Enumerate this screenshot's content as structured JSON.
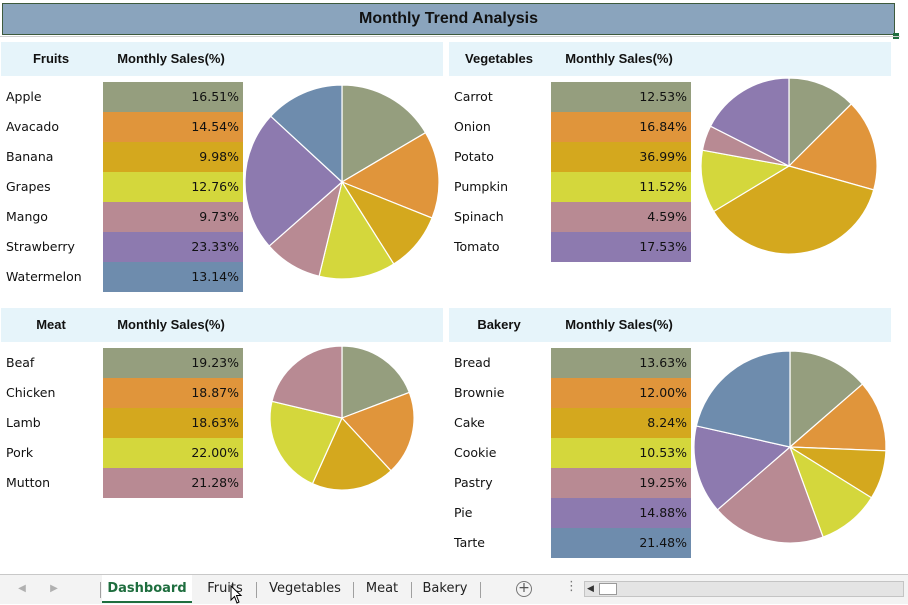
{
  "title": "Monthly Trend Analysis",
  "colors": {
    "slices": [
      "#959e7e",
      "#e0953b",
      "#d4a81e",
      "#d4d73c",
      "#b88a93",
      "#8d7aaf",
      "#6e8cad"
    ],
    "title_bg": "#8aa4bd",
    "header_bg": "#e6f4fa",
    "active_tab": "#1f6e3f"
  },
  "panels": [
    {
      "id": "fruits",
      "category": "Fruits",
      "metric": "Monthly Sales(%)",
      "items": [
        {
          "name": "Apple",
          "pct": "16.51%",
          "value": 16.51
        },
        {
          "name": "Avacado",
          "pct": "14.54%",
          "value": 14.54
        },
        {
          "name": "Banana",
          "pct": "9.98%",
          "value": 9.98
        },
        {
          "name": "Grapes",
          "pct": "12.76%",
          "value": 12.76
        },
        {
          "name": "Mango",
          "pct": "9.73%",
          "value": 9.73
        },
        {
          "name": "Strawberry",
          "pct": "23.33%",
          "value": 23.33
        },
        {
          "name": "Watermelon",
          "pct": "13.14%",
          "value": 13.14
        }
      ]
    },
    {
      "id": "vegetables",
      "category": "Vegetables",
      "metric": "Monthly Sales(%)",
      "items": [
        {
          "name": "Carrot",
          "pct": "12.53%",
          "value": 12.53
        },
        {
          "name": "Onion",
          "pct": "16.84%",
          "value": 16.84
        },
        {
          "name": "Potato",
          "pct": "36.99%",
          "value": 36.99
        },
        {
          "name": "Pumpkin",
          "pct": "11.52%",
          "value": 11.52
        },
        {
          "name": "Spinach",
          "pct": "4.59%",
          "value": 4.59
        },
        {
          "name": "Tomato",
          "pct": "17.53%",
          "value": 17.53
        }
      ]
    },
    {
      "id": "meat",
      "category": "Meat",
      "metric": "Monthly Sales(%)",
      "items": [
        {
          "name": "Beaf",
          "pct": "19.23%",
          "value": 19.23
        },
        {
          "name": "Chicken",
          "pct": "18.87%",
          "value": 18.87
        },
        {
          "name": "Lamb",
          "pct": "18.63%",
          "value": 18.63
        },
        {
          "name": "Pork",
          "pct": "22.00%",
          "value": 22.0
        },
        {
          "name": "Mutton",
          "pct": "21.28%",
          "value": 21.28
        }
      ]
    },
    {
      "id": "bakery",
      "category": "Bakery",
      "metric": "Monthly Sales(%)",
      "items": [
        {
          "name": "Bread",
          "pct": "13.63%",
          "value": 13.63
        },
        {
          "name": "Brownie",
          "pct": "12.00%",
          "value": 12.0
        },
        {
          "name": "Cake",
          "pct": "8.24%",
          "value": 8.24
        },
        {
          "name": "Cookie",
          "pct": "10.53%",
          "value": 10.53
        },
        {
          "name": "Pastry",
          "pct": "19.25%",
          "value": 19.25
        },
        {
          "name": "Pie",
          "pct": "14.88%",
          "value": 14.88
        },
        {
          "name": "Tarte",
          "pct": "21.48%",
          "value": 21.48
        }
      ]
    }
  ],
  "chart_data": [
    {
      "type": "pie",
      "categories": [
        "Apple",
        "Avacado",
        "Banana",
        "Grapes",
        "Mango",
        "Strawberry",
        "Watermelon"
      ],
      "values": [
        16.51,
        14.54,
        9.98,
        12.76,
        9.73,
        23.33,
        13.14
      ]
    },
    {
      "type": "pie",
      "categories": [
        "Carrot",
        "Onion",
        "Potato",
        "Pumpkin",
        "Spinach",
        "Tomato"
      ],
      "values": [
        12.53,
        16.84,
        36.99,
        11.52,
        4.59,
        17.53
      ]
    },
    {
      "type": "pie",
      "categories": [
        "Beaf",
        "Chicken",
        "Lamb",
        "Pork",
        "Mutton"
      ],
      "values": [
        19.23,
        18.87,
        18.63,
        22.0,
        21.28
      ]
    },
    {
      "type": "pie",
      "categories": [
        "Bread",
        "Brownie",
        "Cake",
        "Cookie",
        "Pastry",
        "Pie",
        "Tarte"
      ],
      "values": [
        13.63,
        12.0,
        8.24,
        10.53,
        19.25,
        14.88,
        21.48
      ]
    }
  ],
  "tabs": [
    {
      "label": "Dashboard",
      "active": true
    },
    {
      "label": "Fruits",
      "active": false
    },
    {
      "label": "Vegetables",
      "active": false
    },
    {
      "label": "Meat",
      "active": false
    },
    {
      "label": "Bakery",
      "active": false
    }
  ],
  "tabbar": {
    "prev_icon": "triangle-left-icon",
    "next_icon": "triangle-right-icon",
    "add_icon": "plus-circle-icon",
    "more_icon": "vertical-dots-icon"
  }
}
